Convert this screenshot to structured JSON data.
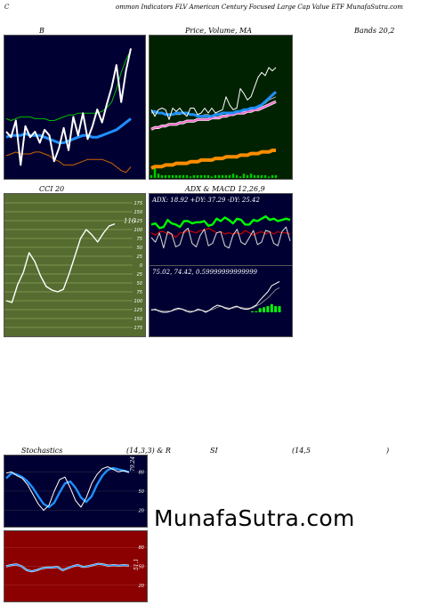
{
  "header": {
    "c": "C",
    "title": "ommon  Indicators FLV American  Century Focused Large  Cap Value  ETF MunafaSutra.com"
  },
  "labels": {
    "bbands_b": "B",
    "price_volume_ma": "Price,  Volume, MA",
    "bands": "Bands 20,2",
    "cci": "CCI 20",
    "adx_macd": "ADX  & MACD 12,26,9",
    "adx_readout": "ADX: 18.92  +DY: 37.29 -DY: 25.42",
    "macd_readout": "75.02,  74.42,  0.59999999999999",
    "cci_value": "116",
    "stoch_left": "Stochastics",
    "stoch_params": "(14,3,3) & R",
    "si": "SI",
    "rsi_params": "(14,5",
    "rsi_close": ")",
    "stoch_value": "79.24",
    "rsi_value": "51.1"
  },
  "watermark": "MunafaSutra.com",
  "colors": {
    "navy": "#000033",
    "green_bg": "#002200",
    "olive": "#556b2f",
    "rsi_red": "#8b0000",
    "price": "#ffffff",
    "band_mid": "#1e90ff",
    "band_upper": "#00bb00",
    "band_lower": "#cc6600",
    "ma_short": "#ff66cc",
    "ma_long": "#ff8c00",
    "volume": "#00cc00",
    "adx_green": "#00ff00"
  },
  "chart_data": [
    {
      "id": "bollinger",
      "type": "line",
      "series": [
        {
          "role": "price",
          "values": [
            160,
            157,
            166,
            142,
            163,
            157,
            160,
            154,
            161,
            158,
            144,
            151,
            162,
            150,
            168,
            158,
            170,
            156,
            163,
            172,
            165,
            175,
            184,
            196,
            176,
            193,
            205
          ]
        },
        {
          "role": "middle",
          "values": [
            157,
            158,
            158,
            158,
            159,
            158,
            158,
            158,
            157,
            156,
            155,
            154,
            154,
            155,
            156,
            157,
            158,
            158,
            157,
            157,
            158,
            159,
            160,
            161,
            163,
            165,
            167
          ]
        },
        {
          "role": "upper",
          "values": [
            167,
            166,
            167,
            168,
            168,
            168,
            167,
            167,
            167,
            166,
            166,
            167,
            168,
            169,
            169,
            170,
            170,
            170,
            170,
            170,
            171,
            173,
            176,
            183,
            192,
            199,
            204
          ]
        },
        {
          "role": "lower",
          "values": [
            147,
            148,
            149,
            148,
            148,
            148,
            149,
            149,
            148,
            147,
            145,
            144,
            142,
            142,
            142,
            143,
            144,
            145,
            145,
            145,
            145,
            144,
            143,
            141,
            139,
            138,
            141
          ]
        }
      ],
      "ylim": [
        135,
        210
      ]
    },
    {
      "id": "price_volume",
      "type": "line",
      "series": [
        {
          "role": "price",
          "values": [
            162,
            158,
            162,
            163,
            162,
            156,
            163,
            161,
            163,
            160,
            158,
            163,
            163,
            159,
            160,
            163,
            160,
            163,
            160,
            161,
            162,
            170,
            165,
            162,
            163,
            175,
            172,
            168,
            170,
            176,
            182,
            185,
            183,
            188,
            186,
            188
          ]
        },
        {
          "role": "ema_a",
          "values": [
            161,
            161,
            160,
            160,
            159,
            159,
            159,
            160,
            160,
            160,
            160,
            159,
            159,
            158,
            158,
            158,
            158,
            158,
            159,
            159,
            160,
            160,
            160,
            160,
            161,
            161,
            162,
            162,
            163,
            163,
            164,
            165,
            167,
            169,
            171,
            173
          ]
        },
        {
          "role": "ema_b",
          "values": [
            160,
            160,
            160,
            160,
            159,
            159,
            159,
            159,
            159,
            160,
            160,
            159,
            159,
            159,
            158,
            159,
            159,
            158,
            159,
            159,
            160,
            160,
            160,
            160,
            161,
            161,
            162,
            162,
            162,
            163,
            164,
            165,
            166,
            168,
            169,
            170
          ]
        },
        {
          "role": "ma_short",
          "values": [
            150,
            151,
            151,
            152,
            152,
            153,
            153,
            153,
            154,
            154,
            155,
            155,
            155,
            156,
            156,
            156,
            156,
            157,
            157,
            157,
            158,
            158,
            159,
            159,
            160,
            160,
            160,
            161,
            161,
            162,
            162,
            163,
            164,
            165,
            166,
            167
          ]
        },
        {
          "role": "ma_long",
          "values": [
            126,
            127,
            127,
            127,
            128,
            128,
            128,
            129,
            129,
            129,
            129,
            130,
            130,
            130,
            131,
            131,
            131,
            131,
            132,
            132,
            132,
            133,
            133,
            133,
            133,
            134,
            134,
            134,
            135,
            135,
            135,
            136,
            136,
            136,
            137,
            137
          ]
        }
      ],
      "volume": [
        2,
        9,
        3,
        2,
        2,
        2,
        2,
        2,
        2,
        2,
        2,
        1,
        2,
        2,
        2,
        2,
        2,
        1,
        2,
        2,
        2,
        2,
        2,
        3,
        2,
        1,
        3,
        2,
        3,
        2,
        2,
        2,
        2,
        1,
        2,
        2
      ],
      "ylim": [
        120,
        200
      ]
    },
    {
      "id": "cci",
      "type": "line",
      "values": [
        -100,
        -105,
        -55,
        -20,
        35,
        10,
        -30,
        -60,
        -70,
        -75,
        -68,
        -25,
        25,
        75,
        100,
        85,
        65,
        90,
        110,
        116
      ],
      "yticks": [
        175,
        150,
        125,
        100,
        75,
        50,
        25,
        0,
        -25,
        -50,
        -75,
        -100,
        -125,
        -150,
        -175
      ],
      "ytick_labels": [
        "175",
        "150",
        "125",
        "100",
        "75",
        "50",
        "25",
        "0",
        "25",
        "50",
        "75",
        "100",
        "125",
        "150",
        "175"
      ],
      "ylim": [
        -190,
        190
      ]
    },
    {
      "id": "adx",
      "type": "line",
      "series": [
        {
          "role": "pdi",
          "values": [
            33,
            34,
            30,
            31,
            37,
            34,
            33,
            31,
            36,
            36,
            34,
            35,
            35,
            36,
            32,
            33,
            38,
            36,
            39,
            37,
            34,
            38,
            37,
            33,
            33,
            37,
            36,
            38,
            40,
            37,
            38,
            36,
            37,
            38,
            37
          ]
        },
        {
          "role": "mdi",
          "values": [
            26,
            24,
            27,
            27,
            25,
            25,
            22,
            26,
            26,
            28,
            27,
            26,
            28,
            28,
            30,
            28,
            26,
            27,
            25,
            26,
            25,
            26,
            25,
            28,
            26,
            24,
            26,
            27,
            25,
            27,
            25,
            27,
            26,
            26,
            25
          ]
        },
        {
          "role": "adx",
          "values": [
            22,
            18,
            26,
            13,
            27,
            25,
            14,
            16,
            27,
            30,
            17,
            14,
            24,
            29,
            15,
            17,
            26,
            27,
            15,
            13,
            24,
            29,
            18,
            16,
            22,
            28,
            16,
            18,
            28,
            27,
            17,
            15,
            27,
            31,
            19
          ]
        }
      ],
      "ylim": [
        0,
        50
      ]
    },
    {
      "id": "macd",
      "type": "line",
      "series": [
        {
          "role": "macd",
          "values": [
            0.2,
            0.3,
            0.1,
            0.0,
            0.0,
            0.1,
            0.3,
            0.4,
            0.3,
            0.1,
            0.0,
            0.1,
            0.3,
            0.2,
            0.0,
            0.2,
            0.5,
            0.7,
            0.6,
            0.4,
            0.3,
            0.5,
            0.6,
            0.4,
            0.3,
            0.3,
            0.5,
            0.7,
            1.2,
            1.6,
            2.0,
            2.6,
            2.8,
            3.0
          ]
        },
        {
          "role": "signal",
          "values": [
            0.3,
            0.2,
            0.2,
            0.1,
            0.1,
            0.1,
            0.2,
            0.3,
            0.3,
            0.2,
            0.1,
            0.1,
            0.2,
            0.2,
            0.1,
            0.2,
            0.3,
            0.5,
            0.6,
            0.5,
            0.4,
            0.4,
            0.5,
            0.5,
            0.4,
            0.4,
            0.4,
            0.6,
            0.8,
            1.1,
            1.4,
            1.8,
            2.2,
            2.4
          ]
        }
      ],
      "hist": [
        0,
        0,
        0,
        0,
        0,
        0,
        0,
        0,
        0,
        0,
        0,
        0,
        0,
        0,
        0,
        0,
        0,
        0,
        0,
        0,
        0,
        0,
        0,
        0,
        0,
        0,
        0.1,
        0.1,
        0.4,
        0.5,
        0.6,
        0.8,
        0.6,
        0.6
      ],
      "ylim": [
        -2,
        4
      ]
    },
    {
      "id": "stochastics",
      "type": "line",
      "series": [
        {
          "role": "k",
          "values": [
            78,
            80,
            74,
            70,
            60,
            45,
            30,
            20,
            28,
            50,
            68,
            72,
            55,
            35,
            25,
            40,
            62,
            76,
            85,
            88,
            84,
            80,
            82,
            79
          ]
        },
        {
          "role": "d",
          "values": [
            70,
            78,
            76,
            72,
            65,
            55,
            42,
            30,
            25,
            32,
            48,
            62,
            65,
            55,
            40,
            33,
            42,
            60,
            74,
            83,
            86,
            84,
            82,
            80
          ]
        }
      ],
      "yticks": [
        80,
        50,
        20
      ],
      "ylim": [
        0,
        100
      ]
    },
    {
      "id": "rsi",
      "type": "line",
      "series": [
        {
          "role": "rsi",
          "values": [
            50,
            52,
            53,
            50,
            44,
            42,
            44,
            47,
            48,
            48,
            49,
            44,
            47,
            50,
            52,
            49,
            50,
            52,
            54,
            53,
            51,
            52,
            51,
            52,
            51
          ]
        }
      ],
      "yticks": [
        80,
        50,
        20
      ],
      "ylim": [
        0,
        100
      ]
    }
  ]
}
